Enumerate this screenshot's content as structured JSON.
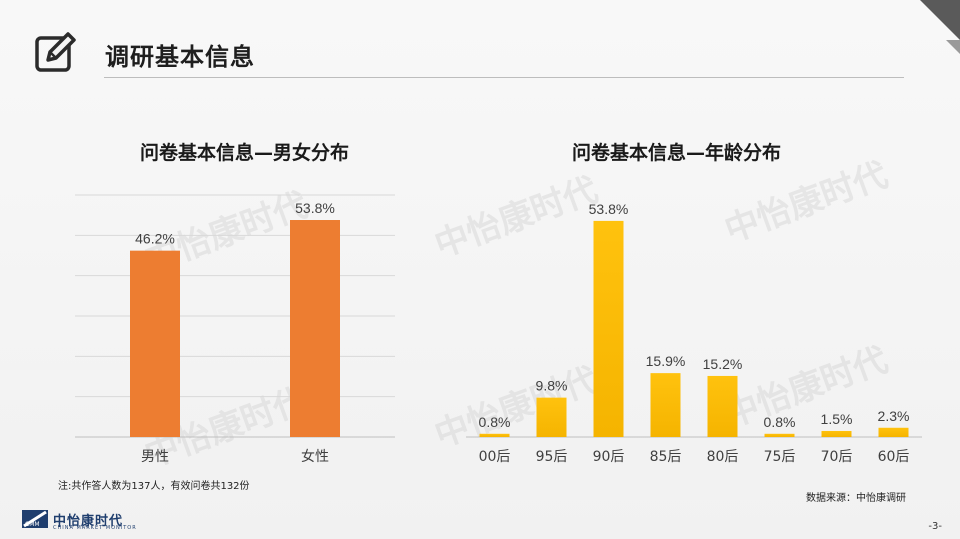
{
  "header": {
    "title": "调研基本信息",
    "icon": "edit-icon"
  },
  "watermark": {
    "name": "中怡康时代",
    "sub": "CHINA MARKET MONITOR"
  },
  "chart_data": [
    {
      "type": "bar",
      "title": "问卷基本信息—男女分布",
      "categories": [
        "男性",
        "女性"
      ],
      "values": [
        46.2,
        53.8
      ],
      "data_labels": [
        "46.2%",
        "53.8%"
      ],
      "ylim": [
        0,
        60
      ],
      "grid": true,
      "color": "#ed7d31"
    },
    {
      "type": "bar",
      "title": "问卷基本信息—年龄分布",
      "categories": [
        "00后",
        "95后",
        "90后",
        "85后",
        "80后",
        "75后",
        "70后",
        "60后"
      ],
      "values": [
        0.8,
        9.8,
        53.8,
        15.9,
        15.2,
        0.8,
        1.5,
        2.3
      ],
      "data_labels": [
        "0.8%",
        "9.8%",
        "53.8%",
        "15.9%",
        "15.2%",
        "0.8%",
        "1.5%",
        "2.3%"
      ],
      "ylim": [
        0,
        60
      ],
      "grid": false,
      "color": "#ffc000"
    }
  ],
  "footer": {
    "note": "注:共作答人数为137人，有效问卷共132份",
    "source": "数据来源：中怡康调研",
    "logo_text": "中怡康时代",
    "logo_sub": "CHINA MARKET MONITOR",
    "page": "-3-"
  }
}
